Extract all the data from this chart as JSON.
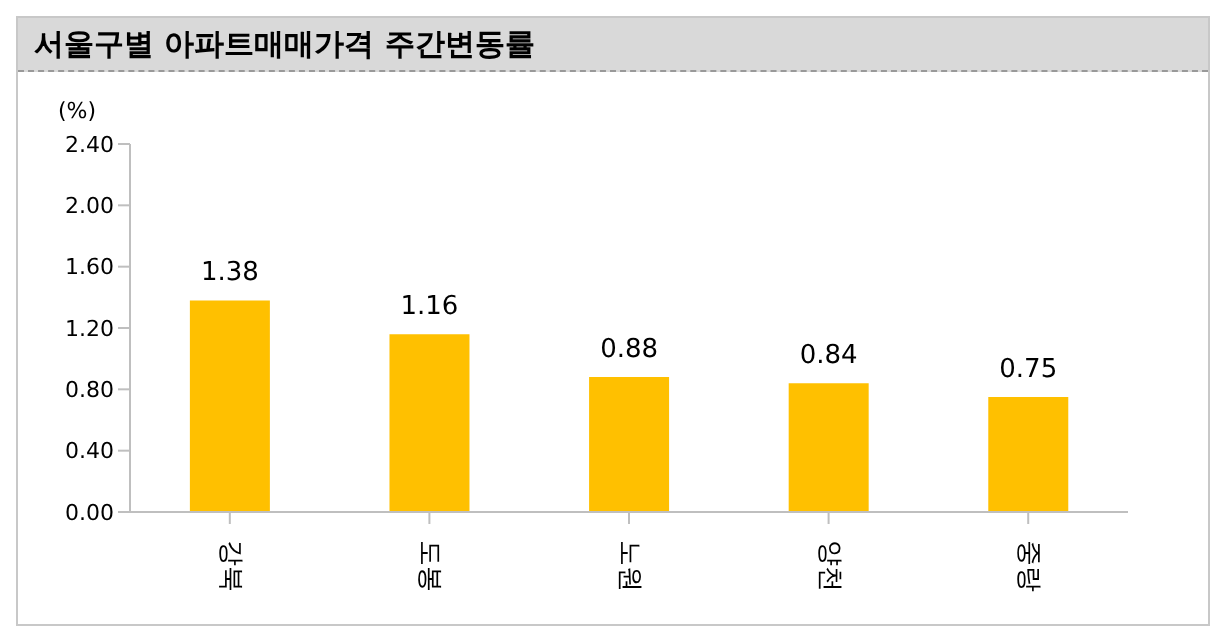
{
  "chart_data": {
    "type": "bar",
    "title": "서울구별 아파트매매가격 주간변동률",
    "ylabel": "(%)",
    "categories": [
      "강북",
      "도봉",
      "노원",
      "양천",
      "중랑"
    ],
    "values": [
      1.38,
      1.16,
      0.88,
      0.84,
      0.75
    ],
    "color": "#ffc000",
    "ylim": [
      0,
      2.4
    ],
    "yticks": [
      {
        "value": 0,
        "label": "0.00"
      },
      {
        "value": 0.4,
        "label": "0.40"
      },
      {
        "value": 0.8,
        "label": "0.80"
      },
      {
        "value": 1.2,
        "label": "1.20"
      },
      {
        "value": 1.6,
        "label": "1.60"
      },
      {
        "value": 2,
        "label": "2.00"
      },
      {
        "value": 2.4,
        "label": "2.40"
      }
    ],
    "data_labels": true,
    "grid": false
  }
}
